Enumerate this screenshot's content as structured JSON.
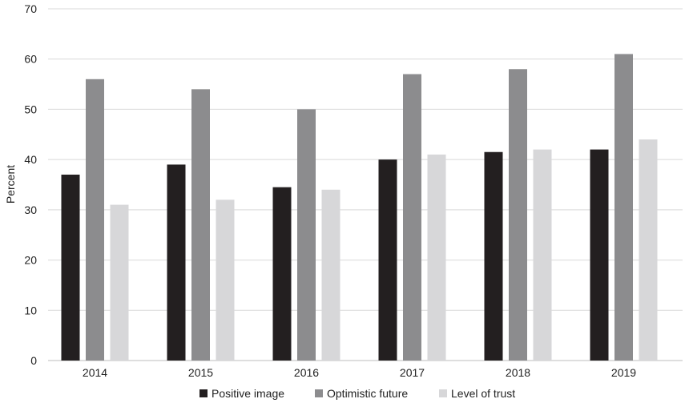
{
  "chart_data": {
    "type": "bar",
    "title": "",
    "xlabel": "",
    "ylabel": "Percent",
    "ylim": [
      0,
      70
    ],
    "yticks": [
      0,
      10,
      20,
      30,
      40,
      50,
      60,
      70
    ],
    "grid": true,
    "legend_position": "bottom",
    "categories": [
      "2014",
      "2015",
      "2016",
      "2017",
      "2018",
      "2019"
    ],
    "series": [
      {
        "name": "Positive image",
        "color": "#231f20",
        "values": [
          37,
          39,
          34.5,
          40,
          41.5,
          42
        ]
      },
      {
        "name": "Optimistic future",
        "color": "#8c8c8e",
        "values": [
          56,
          54,
          50,
          57,
          58,
          61
        ]
      },
      {
        "name": "Level of trust",
        "color": "#d7d7d9",
        "values": [
          31,
          32,
          34,
          41,
          42,
          44
        ]
      }
    ]
  }
}
